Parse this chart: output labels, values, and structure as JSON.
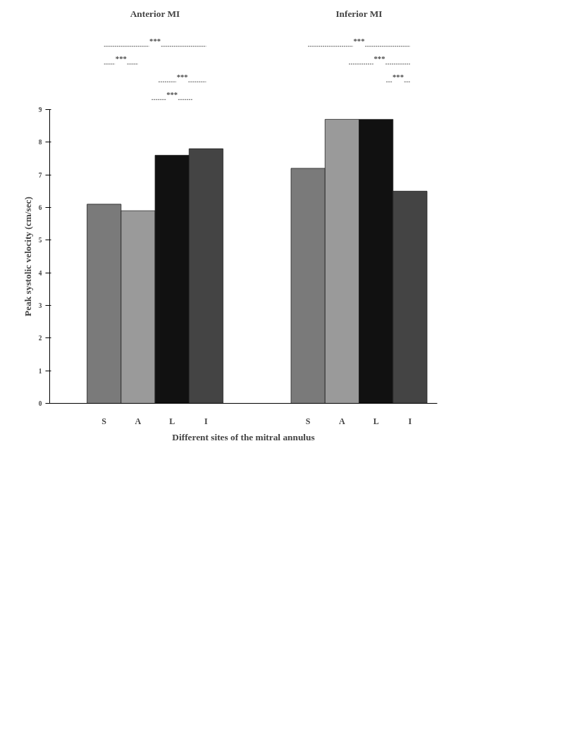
{
  "chart_data": {
    "type": "bar",
    "xlabel": "Different sites of the mitral annulus",
    "ylabel": "Peak systolic velocity (cm/sec)",
    "categories": [
      "S",
      "A",
      "L",
      "I",
      null,
      null,
      "S",
      "A",
      "L",
      "I"
    ],
    "values": [
      6.1,
      5.9,
      7.6,
      7.8,
      null,
      null,
      7.2,
      8.7,
      8.7,
      6.5
    ],
    "colors": [
      "#7a7a7a",
      "#9a9a9a",
      "#111111",
      "#444444",
      "#ffffff",
      "#ffffff",
      "#7a7a7a",
      "#9a9a9a",
      "#111111",
      "#444444"
    ],
    "ylim": [
      0,
      9
    ],
    "yticks": [
      0,
      1,
      2,
      3,
      4,
      5,
      6,
      7,
      8,
      9
    ],
    "grid": false,
    "annotations": [
      "Anterior MI",
      "Inferior MI",
      "***",
      "***",
      "***",
      "***",
      "***",
      "***",
      "***"
    ]
  }
}
